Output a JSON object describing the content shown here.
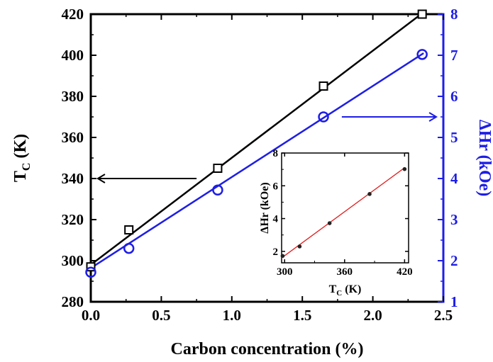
{
  "chart_data": [
    {
      "type": "line+scatter",
      "xlabel": "Carbon concentration (%)",
      "xlim": [
        0.0,
        2.5
      ],
      "x_ticks": [
        "0.0",
        "0.5",
        "1.0",
        "1.5",
        "2.0",
        "2.5"
      ],
      "ylabel_left": {
        "main": "T",
        "sub": "C",
        "rest": " (K)"
      },
      "ylim_left": [
        280,
        420
      ],
      "y_ticks_left": [
        "280",
        "300",
        "320",
        "340",
        "360",
        "380",
        "400",
        "420"
      ],
      "ylabel_right": "ΔHr (kOe)",
      "ylim_right": [
        1,
        8
      ],
      "y_ticks_right": [
        "1",
        "2",
        "3",
        "4",
        "5",
        "6",
        "7",
        "8"
      ],
      "series": [
        {
          "axis": "left",
          "marker": "square",
          "color": "#000000",
          "points": [
            [
              0.0,
              297
            ],
            [
              0.27,
              315
            ],
            [
              0.9,
              345
            ],
            [
              1.65,
              385
            ],
            [
              2.35,
              420
            ]
          ],
          "fit": [
            [
              0.0,
              298
            ],
            [
              2.38,
              422
            ]
          ]
        },
        {
          "axis": "right",
          "marker": "circle",
          "color": "#1e1ee6",
          "points": [
            [
              0.0,
              1.72
            ],
            [
              0.27,
              2.3
            ],
            [
              0.9,
              3.72
            ],
            [
              1.65,
              5.5
            ],
            [
              2.35,
              7.02
            ]
          ],
          "fit": [
            [
              0.0,
              1.82
            ],
            [
              2.36,
              7.05
            ]
          ]
        }
      ],
      "arrows": [
        {
          "direction": "left",
          "color": "#000000",
          "from": [
            0.75,
            340
          ],
          "to": [
            0.05,
            340
          ]
        },
        {
          "direction": "right",
          "color": "#1e1ee6",
          "from": [
            1.78,
            5.5
          ],
          "to": [
            2.45,
            5.5
          ]
        }
      ]
    },
    {
      "type": "scatter+line",
      "inset": true,
      "xlabel": {
        "main": "T",
        "sub": "C",
        "rest": " (K)"
      },
      "xlim": [
        297,
        424
      ],
      "x_ticks": [
        {
          "v": 300,
          "label": "300"
        },
        {
          "v": 360,
          "label": "360"
        },
        {
          "v": 420,
          "label": "420"
        }
      ],
      "ylabel": "ΔHr (kOe)",
      "ylim": [
        1.3,
        8.0
      ],
      "y_ticks": [
        {
          "v": 2,
          "label": "2"
        },
        {
          "v": 4,
          "label": "4"
        },
        {
          "v": 6,
          "label": "6"
        },
        {
          "v": 8,
          "label": "8"
        }
      ],
      "points": [
        [
          298,
          1.72
        ],
        [
          315,
          2.3
        ],
        [
          345,
          3.72
        ],
        [
          385,
          5.5
        ],
        [
          420,
          7.02
        ]
      ],
      "fit": [
        [
          297,
          1.6
        ],
        [
          420,
          7.1
        ]
      ],
      "fit_color": "#e02020"
    }
  ]
}
